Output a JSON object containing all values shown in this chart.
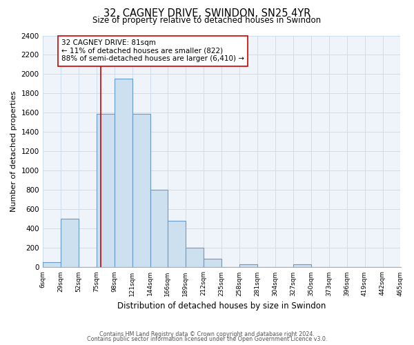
{
  "title": "32, CAGNEY DRIVE, SWINDON, SN25 4YR",
  "subtitle": "Size of property relative to detached houses in Swindon",
  "xlabel": "Distribution of detached houses by size in Swindon",
  "ylabel": "Number of detached properties",
  "bin_labels": [
    "6sqm",
    "29sqm",
    "52sqm",
    "75sqm",
    "98sqm",
    "121sqm",
    "144sqm",
    "166sqm",
    "189sqm",
    "212sqm",
    "235sqm",
    "258sqm",
    "281sqm",
    "304sqm",
    "327sqm",
    "350sqm",
    "373sqm",
    "396sqm",
    "419sqm",
    "442sqm",
    "465sqm"
  ],
  "bin_edges": [
    6,
    29,
    52,
    75,
    98,
    121,
    144,
    166,
    189,
    212,
    235,
    258,
    281,
    304,
    327,
    350,
    373,
    396,
    419,
    442,
    465
  ],
  "bar_heights": [
    50,
    500,
    0,
    1590,
    1950,
    1590,
    800,
    480,
    200,
    90,
    0,
    35,
    0,
    0,
    30,
    0,
    0,
    0,
    0,
    0
  ],
  "bar_color": "#cce0f0",
  "bar_edge_color": "#6699cc",
  "ylim": [
    0,
    2400
  ],
  "yticks": [
    0,
    200,
    400,
    600,
    800,
    1000,
    1200,
    1400,
    1600,
    1800,
    2000,
    2200,
    2400
  ],
  "property_line_x": 81,
  "property_line_color": "#cc0000",
  "annotation_title": "32 CAGNEY DRIVE: 81sqm",
  "annotation_line1": "← 11% of detached houses are smaller (822)",
  "annotation_line2": "88% of semi-detached houses are larger (6,410) →",
  "annotation_box_color": "#ffffff",
  "annotation_box_edge": "#cc0000",
  "footer_line1": "Contains HM Land Registry data © Crown copyright and database right 2024.",
  "footer_line2": "Contains public sector information licensed under the Open Government Licence v3.0.",
  "background_color": "#ffffff",
  "grid_color": "#ccddee",
  "plot_bg_color": "#eef4fa"
}
